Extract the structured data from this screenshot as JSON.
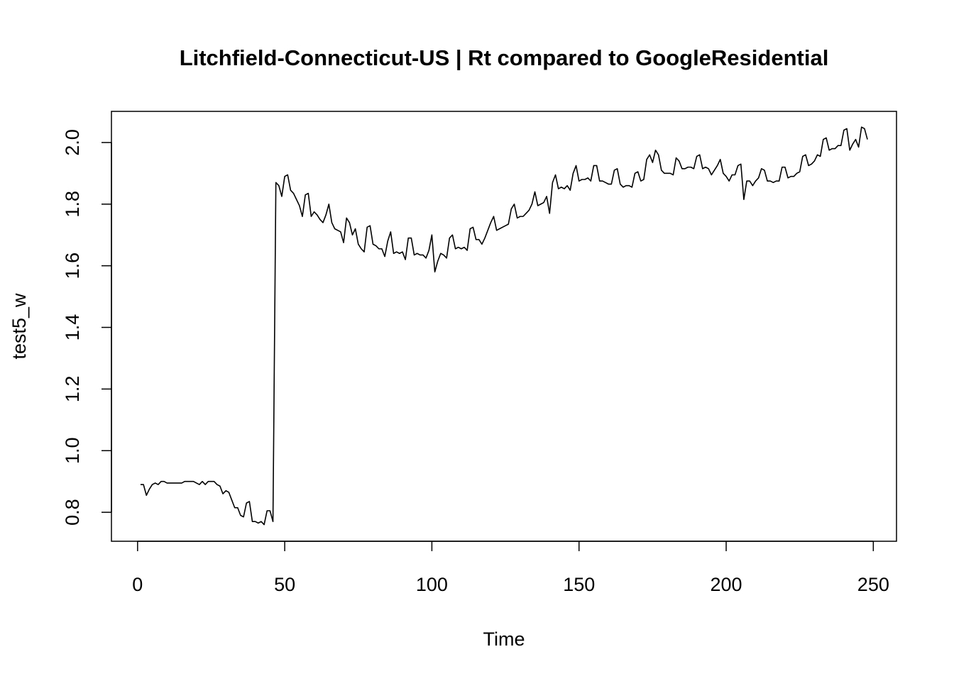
{
  "chart_data": {
    "type": "line",
    "title": "Litchfield-Connecticut-US | Rt compared to GoogleResidential",
    "xlabel": "Time",
    "ylabel": "test5_w",
    "color": "#000000",
    "xlim": [
      -8.88,
      257.88
    ],
    "ylim": [
      0.706,
      2.101
    ],
    "xticks": [
      0,
      50,
      100,
      150,
      200,
      250
    ],
    "yticks": [
      0.8,
      {
        "value": 1,
        "label": "1.0"
      },
      1.2,
      1.4,
      1.6,
      1.8,
      {
        "value": 2,
        "label": "2.0"
      }
    ],
    "x": [
      1,
      2,
      3,
      4,
      5,
      6,
      7,
      8,
      9,
      10,
      11,
      12,
      13,
      14,
      15,
      16,
      17,
      18,
      19,
      20,
      21,
      22,
      23,
      24,
      25,
      26,
      27,
      28,
      29,
      30,
      31,
      32,
      33,
      34,
      35,
      36,
      37,
      38,
      39,
      40,
      41,
      42,
      43,
      44,
      45,
      46,
      47,
      48,
      49,
      50,
      51,
      52,
      53,
      54,
      55,
      56,
      57,
      58,
      59,
      60,
      61,
      62,
      63,
      64,
      65,
      66,
      67,
      68,
      69,
      70,
      71,
      72,
      73,
      74,
      75,
      76,
      77,
      78,
      79,
      80,
      81,
      82,
      83,
      84,
      85,
      86,
      87,
      88,
      89,
      90,
      91,
      92,
      93,
      94,
      95,
      96,
      97,
      98,
      99,
      100,
      101,
      102,
      103,
      104,
      105,
      106,
      107,
      108,
      109,
      110,
      111,
      112,
      113,
      114,
      115,
      116,
      117,
      118,
      119,
      120,
      121,
      122,
      123,
      124,
      125,
      126,
      127,
      128,
      129,
      130,
      131,
      132,
      133,
      134,
      135,
      136,
      137,
      138,
      139,
      140,
      141,
      142,
      143,
      144,
      145,
      146,
      147,
      148,
      149,
      150,
      151,
      152,
      153,
      154,
      155,
      156,
      157,
      158,
      159,
      160,
      161,
      162,
      163,
      164,
      165,
      166,
      167,
      168,
      169,
      170,
      171,
      172,
      173,
      174,
      175,
      176,
      177,
      178,
      179,
      180,
      181,
      182,
      183,
      184,
      185,
      186,
      187,
      188,
      189,
      190,
      191,
      192,
      193,
      194,
      195,
      196,
      197,
      198,
      199,
      200,
      201,
      202,
      203,
      204,
      205,
      206,
      207,
      208,
      209,
      210,
      211,
      212,
      213,
      214,
      215,
      216,
      217,
      218,
      219,
      220,
      221,
      222,
      223,
      224,
      225,
      226,
      227,
      228,
      229,
      230,
      231,
      232,
      233,
      234,
      235,
      236,
      237,
      238,
      239,
      240,
      241,
      242,
      243,
      244,
      245,
      246,
      247,
      248
    ],
    "values": [
      0.89,
      0.89,
      0.855,
      0.875,
      0.89,
      0.895,
      0.89,
      0.9,
      0.9,
      0.895,
      0.895,
      0.895,
      0.895,
      0.895,
      0.895,
      0.9,
      0.9,
      0.9,
      0.9,
      0.895,
      0.89,
      0.9,
      0.89,
      0.9,
      0.9,
      0.9,
      0.89,
      0.885,
      0.86,
      0.87,
      0.865,
      0.84,
      0.815,
      0.815,
      0.79,
      0.785,
      0.83,
      0.835,
      0.77,
      0.77,
      0.765,
      0.77,
      0.76,
      0.805,
      0.805,
      0.77,
      1.87,
      1.86,
      1.825,
      1.89,
      1.895,
      1.845,
      1.835,
      1.815,
      1.795,
      1.76,
      1.83,
      1.835,
      1.76,
      1.775,
      1.765,
      1.75,
      1.74,
      1.765,
      1.8,
      1.74,
      1.72,
      1.715,
      1.71,
      1.675,
      1.755,
      1.74,
      1.7,
      1.72,
      1.67,
      1.655,
      1.645,
      1.725,
      1.73,
      1.67,
      1.665,
      1.655,
      1.655,
      1.63,
      1.68,
      1.71,
      1.64,
      1.645,
      1.64,
      1.645,
      1.62,
      1.69,
      1.69,
      1.635,
      1.64,
      1.635,
      1.635,
      1.625,
      1.65,
      1.7,
      1.58,
      1.615,
      1.64,
      1.635,
      1.625,
      1.69,
      1.7,
      1.655,
      1.66,
      1.655,
      1.66,
      1.65,
      1.72,
      1.725,
      1.685,
      1.685,
      1.67,
      1.69,
      1.715,
      1.74,
      1.76,
      1.715,
      1.72,
      1.725,
      1.73,
      1.735,
      1.785,
      1.8,
      1.755,
      1.76,
      1.76,
      1.77,
      1.78,
      1.8,
      1.84,
      1.795,
      1.8,
      1.805,
      1.825,
      1.77,
      1.87,
      1.895,
      1.85,
      1.855,
      1.85,
      1.86,
      1.845,
      1.9,
      1.925,
      1.875,
      1.88,
      1.88,
      1.885,
      1.875,
      1.925,
      1.925,
      1.875,
      1.875,
      1.87,
      1.865,
      1.865,
      1.91,
      1.915,
      1.865,
      1.855,
      1.86,
      1.86,
      1.855,
      1.9,
      1.905,
      1.875,
      1.88,
      1.945,
      1.96,
      1.935,
      1.975,
      1.96,
      1.91,
      1.9,
      1.9,
      1.9,
      1.895,
      1.95,
      1.94,
      1.915,
      1.915,
      1.92,
      1.92,
      1.915,
      1.955,
      1.96,
      1.915,
      1.92,
      1.915,
      1.895,
      1.91,
      1.925,
      1.945,
      1.9,
      1.89,
      1.875,
      1.895,
      1.895,
      1.925,
      1.93,
      1.815,
      1.875,
      1.875,
      1.86,
      1.875,
      1.885,
      1.915,
      1.91,
      1.875,
      1.875,
      1.87,
      1.875,
      1.875,
      1.92,
      1.92,
      1.885,
      1.89,
      1.89,
      1.9,
      1.905,
      1.955,
      1.96,
      1.925,
      1.93,
      1.94,
      1.96,
      1.955,
      2.01,
      2.015,
      1.975,
      1.98,
      1.98,
      1.99,
      1.99,
      2.04,
      2.045,
      1.975,
      1.995,
      2.01,
      1.985,
      2.05,
      2.045,
      2.01
    ]
  }
}
